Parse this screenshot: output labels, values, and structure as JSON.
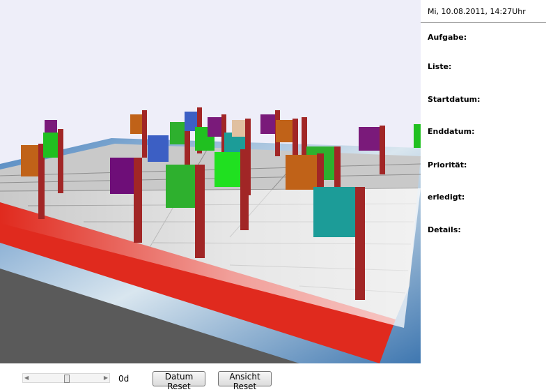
{
  "header": {
    "datetime": "Mi, 10.08.2011, 14:27Uhr"
  },
  "details": {
    "labels": [
      "Aufgabe:",
      "Liste:",
      "Startdatum:",
      "Enddatum:",
      "Priorität:",
      "erledigt:",
      "Details:"
    ]
  },
  "controls": {
    "slider_value": "0d",
    "buttons": [
      "Datum Reset",
      "Ansicht Reset"
    ]
  }
}
